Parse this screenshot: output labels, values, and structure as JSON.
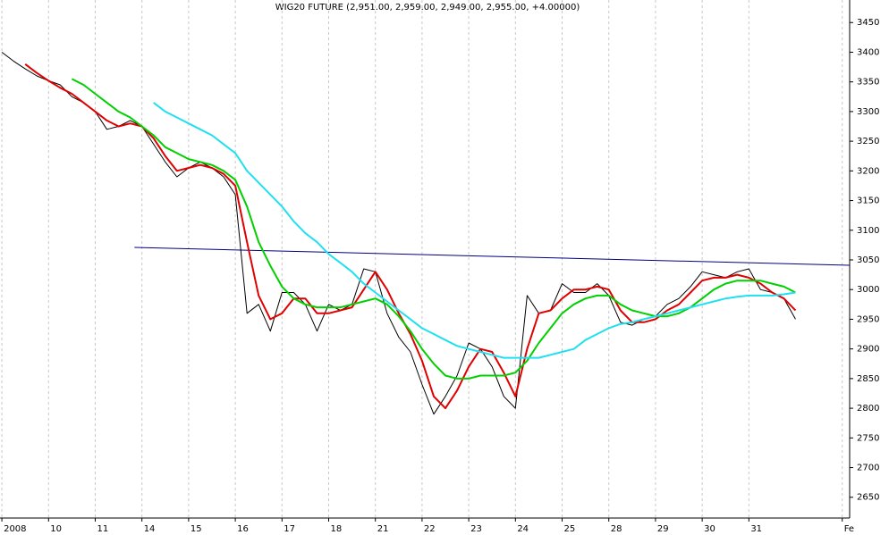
{
  "chart_data": {
    "type": "line",
    "title": "WIG20 FUTURE (2,951.00, 2,959.00, 2,949.00, 2,955.00, +4.00000)",
    "x": [
      0,
      0.25,
      0.5,
      0.75,
      1,
      1.25,
      1.5,
      1.75,
      2,
      2.25,
      2.5,
      2.75,
      3,
      3.25,
      3.5,
      3.75,
      4,
      4.25,
      4.5,
      4.75,
      5,
      5.25,
      5.5,
      5.75,
      6,
      6.25,
      6.5,
      6.75,
      7,
      7.25,
      7.5,
      7.75,
      8,
      8.25,
      8.5,
      8.75,
      9,
      9.25,
      9.5,
      9.75,
      10,
      10.25,
      10.5,
      10.75,
      11,
      11.25,
      11.5,
      11.75,
      12,
      12.25,
      12.5,
      12.75,
      13,
      13.25,
      13.5,
      13.75,
      14,
      14.25,
      14.5,
      14.75,
      15,
      15.25,
      15.5,
      15.75,
      16,
      16.25,
      16.5,
      16.75,
      17
    ],
    "series": [
      {
        "color": "#000000",
        "width": 1,
        "values": [
          3400,
          3385,
          3372,
          3360,
          3352,
          3345,
          3325,
          3315,
          3300,
          3270,
          3275,
          3285,
          3275,
          3245,
          3215,
          3190,
          3205,
          3215,
          3205,
          3190,
          3160,
          2960,
          2975,
          2930,
          2995,
          2995,
          2975,
          2930,
          2975,
          2965,
          2975,
          3035,
          3030,
          2960,
          2920,
          2895,
          2840,
          2790,
          2820,
          2855,
          2910,
          2900,
          2870,
          2820,
          2800,
          2990,
          2960,
          2965,
          3010,
          2995,
          2995,
          3010,
          2990,
          2945,
          2940,
          2950,
          2955,
          2975,
          2985,
          3005,
          3030,
          3025,
          3020,
          3030,
          3035,
          3000,
          2995,
          2985,
          2950
        ]
      },
      {
        "color": "#e00000",
        "width": 2,
        "values": [
          null,
          null,
          3380,
          3365,
          3352,
          3340,
          3330,
          3315,
          3300,
          3285,
          3275,
          3280,
          3275,
          3255,
          3225,
          3200,
          3205,
          3210,
          3205,
          3195,
          3175,
          3080,
          2990,
          2950,
          2960,
          2985,
          2985,
          2960,
          2960,
          2965,
          2970,
          3000,
          3030,
          3000,
          2960,
          2925,
          2880,
          2820,
          2800,
          2830,
          2870,
          2900,
          2895,
          2860,
          2820,
          2900,
          2960,
          2965,
          2985,
          3000,
          3000,
          3005,
          3000,
          2965,
          2945,
          2945,
          2950,
          2965,
          2975,
          2995,
          3015,
          3020,
          3020,
          3025,
          3020,
          3010,
          2995,
          2985,
          2965
        ]
      },
      {
        "color": "#00d000",
        "width": 2,
        "values": [
          null,
          null,
          null,
          null,
          null,
          null,
          3355,
          3345,
          3330,
          3315,
          3300,
          3290,
          3275,
          3260,
          3240,
          3230,
          3220,
          3215,
          3210,
          3200,
          3185,
          3140,
          3080,
          3040,
          3005,
          2985,
          2975,
          2970,
          2970,
          2970,
          2975,
          2980,
          2985,
          2975,
          2955,
          2930,
          2900,
          2875,
          2855,
          2850,
          2850,
          2855,
          2855,
          2855,
          2860,
          2880,
          2910,
          2935,
          2960,
          2975,
          2985,
          2990,
          2990,
          2975,
          2965,
          2960,
          2955,
          2955,
          2960,
          2970,
          2985,
          3000,
          3010,
          3015,
          3015,
          3015,
          3010,
          3005,
          2995
        ]
      },
      {
        "color": "#20e0f0",
        "width": 2,
        "values": [
          null,
          null,
          null,
          null,
          null,
          null,
          null,
          null,
          null,
          null,
          null,
          null,
          null,
          3315,
          3300,
          3290,
          3280,
          3270,
          3260,
          3245,
          3230,
          3200,
          3180,
          3160,
          3140,
          3115,
          3095,
          3080,
          3060,
          3045,
          3030,
          3010,
          2995,
          2980,
          2965,
          2950,
          2935,
          2925,
          2915,
          2905,
          2900,
          2895,
          2890,
          2885,
          2885,
          2885,
          2885,
          2890,
          2895,
          2900,
          2915,
          2925,
          2935,
          2942,
          2945,
          2950,
          2955,
          2960,
          2965,
          2970,
          2975,
          2980,
          2985,
          2988,
          2990,
          2990,
          2990,
          2992,
          2995
        ]
      }
    ],
    "trendline": {
      "color": "#000080",
      "x": [
        2.84,
        18.16
      ],
      "values": [
        3071,
        3041
      ]
    },
    "xlim": [
      -0.04,
      18.35
    ],
    "ylim": [
      2615,
      3488
    ],
    "xticks": [
      {
        "value": 0,
        "label": "2008"
      },
      {
        "value": 1,
        "label": "10"
      },
      {
        "value": 2,
        "label": "11"
      },
      {
        "value": 3,
        "label": "14"
      },
      {
        "value": 4,
        "label": "15"
      },
      {
        "value": 5,
        "label": "16"
      },
      {
        "value": 6,
        "label": "17"
      },
      {
        "value": 7,
        "label": "18"
      },
      {
        "value": 8,
        "label": "21"
      },
      {
        "value": 9,
        "label": "22"
      },
      {
        "value": 10,
        "label": "23"
      },
      {
        "value": 11,
        "label": "24"
      },
      {
        "value": 12,
        "label": "25"
      },
      {
        "value": 13,
        "label": "28"
      },
      {
        "value": 14,
        "label": "29"
      },
      {
        "value": 15,
        "label": "30"
      },
      {
        "value": 16,
        "label": "31"
      },
      {
        "value": 18,
        "label": "Fe"
      }
    ],
    "yticks": [
      2650,
      2700,
      2750,
      2800,
      2850,
      2900,
      2950,
      3000,
      3050,
      3100,
      3150,
      3200,
      3250,
      3300,
      3350,
      3400,
      3450
    ],
    "grid": true
  }
}
